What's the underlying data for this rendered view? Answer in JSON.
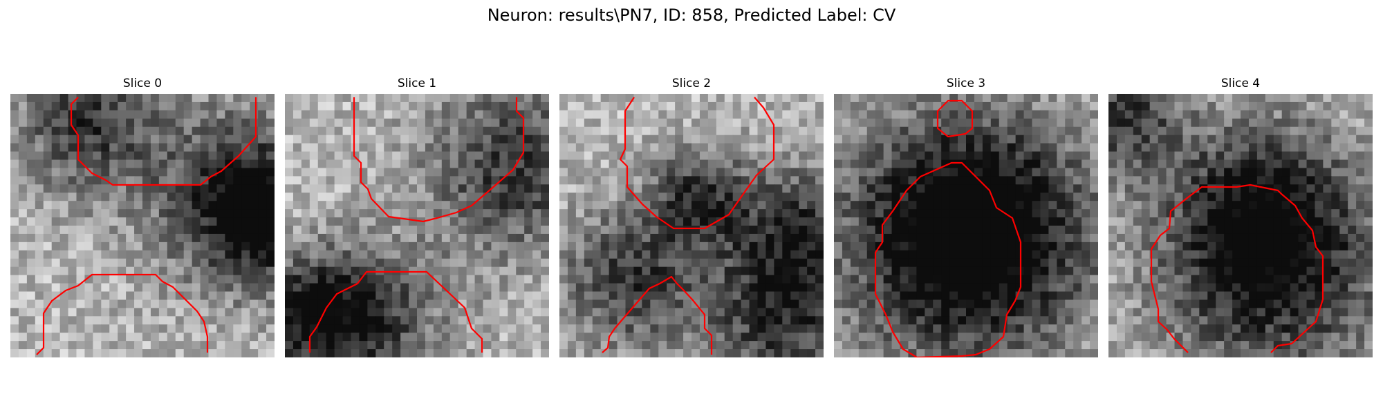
{
  "figure": {
    "title": "Neuron: results\\PN7, ID: 858, Predicted Label: CV"
  },
  "panels": [
    {
      "title": "Slice 0"
    },
    {
      "title": "Slice 1"
    },
    {
      "title": "Slice 2"
    },
    {
      "title": "Slice 3"
    },
    {
      "title": "Slice 4"
    }
  ],
  "colors": {
    "contour": "#ff0000",
    "background": "#ffffff"
  }
}
